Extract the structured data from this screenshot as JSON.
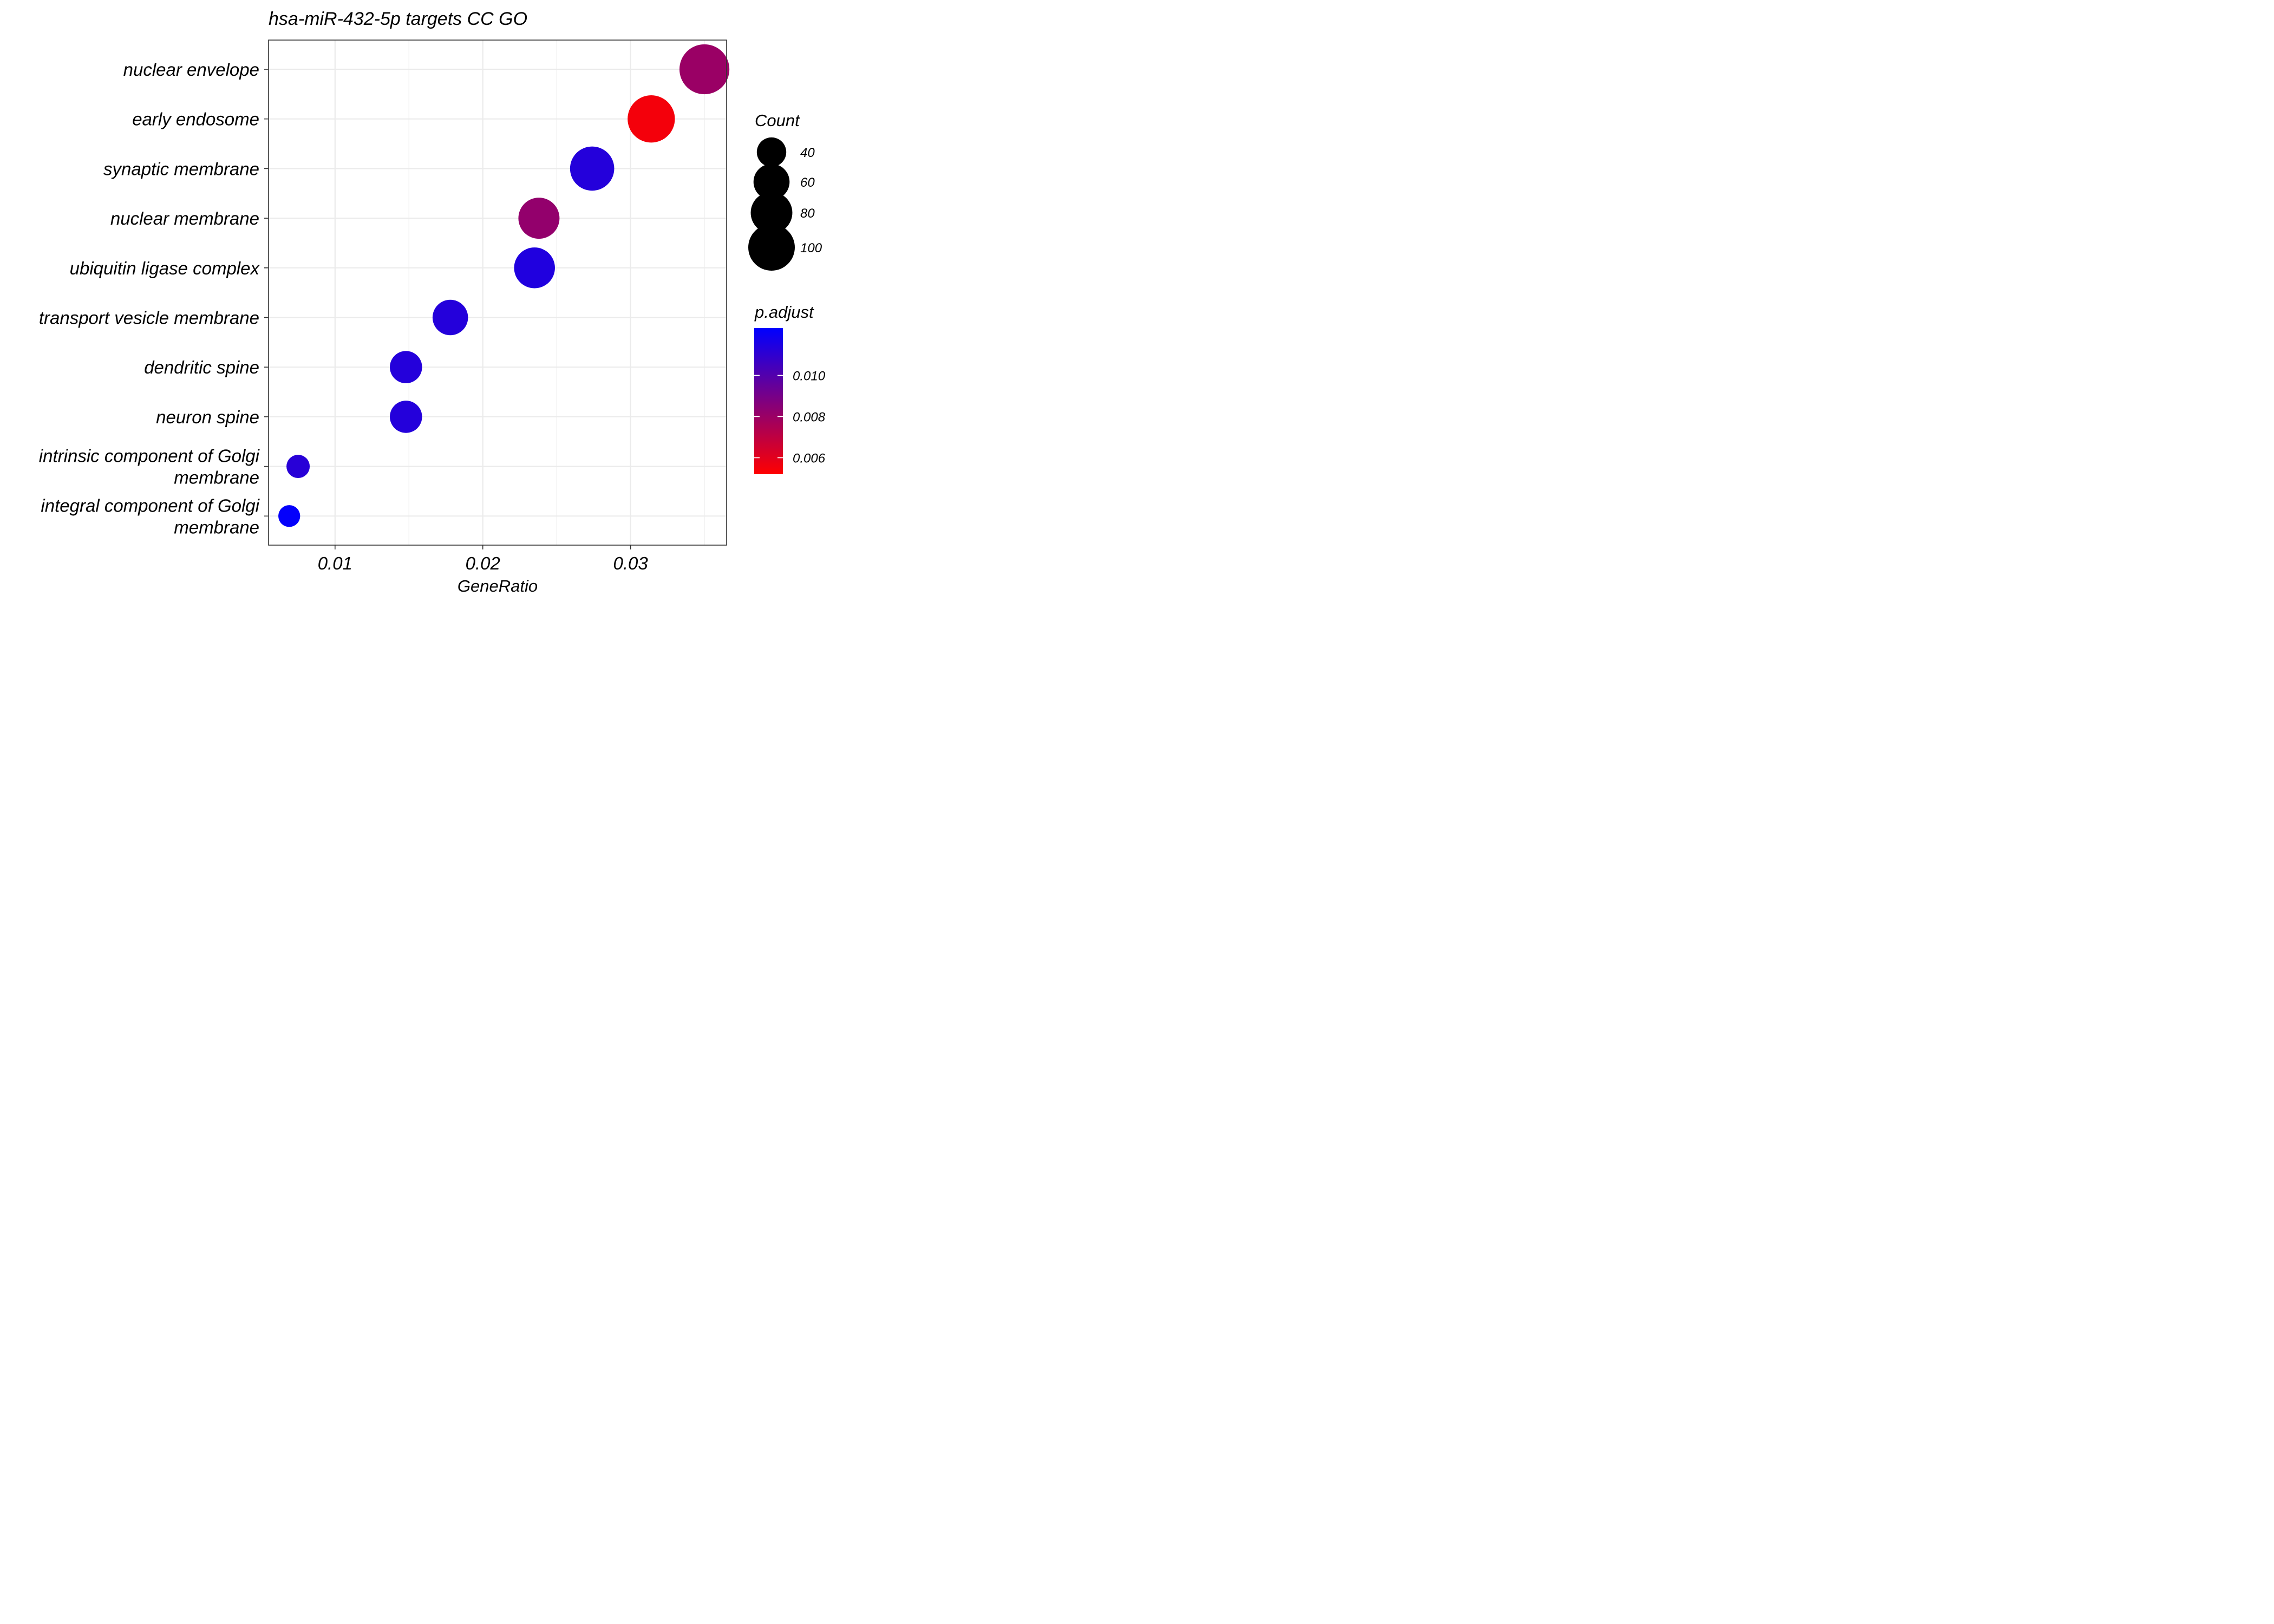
{
  "chart_data": {
    "type": "scatter",
    "title": "hsa-miR-432-5p targets CC GO",
    "xlabel": "GeneRatio",
    "ylabel": "",
    "xlim": [
      0.0055,
      0.0365
    ],
    "x_ticks": [
      0.01,
      0.02,
      0.03
    ],
    "x_tick_labels": [
      "0.01",
      "0.02",
      "0.03"
    ],
    "grid": true,
    "categories": [
      "nuclear envelope",
      "early endosome",
      "synaptic membrane",
      "nuclear membrane",
      "ubiquitin ligase complex",
      "transport vesicle membrane",
      "dendritic spine",
      "neuron spine",
      "intrinsic component of Golgi membrane",
      "integral component of Golgi membrane"
    ],
    "category_label_lines": [
      [
        "nuclear envelope"
      ],
      [
        "early endosome"
      ],
      [
        "synaptic membrane"
      ],
      [
        "nuclear membrane"
      ],
      [
        "ubiquitin ligase complex"
      ],
      [
        "transport vesicle membrane"
      ],
      [
        "dendritic spine"
      ],
      [
        "neuron spine"
      ],
      [
        "intrinsic component of Golgi",
        "membrane"
      ],
      [
        "integral component of Golgi",
        "membrane"
      ]
    ],
    "points": [
      {
        "category": "nuclear envelope",
        "gene_ratio": 0.035,
        "count": 115,
        "p_adjust": 0.008
      },
      {
        "category": "early endosome",
        "gene_ratio": 0.0314,
        "count": 103,
        "p_adjust": 0.0055
      },
      {
        "category": "synaptic membrane",
        "gene_ratio": 0.0274,
        "count": 90,
        "p_adjust": 0.0113
      },
      {
        "category": "nuclear membrane",
        "gene_ratio": 0.0238,
        "count": 78,
        "p_adjust": 0.0082
      },
      {
        "category": "ubiquitin ligase complex",
        "gene_ratio": 0.0235,
        "count": 77,
        "p_adjust": 0.0114
      },
      {
        "category": "transport vesicle membrane",
        "gene_ratio": 0.0178,
        "count": 58,
        "p_adjust": 0.0113
      },
      {
        "category": "dendritic spine",
        "gene_ratio": 0.0148,
        "count": 48,
        "p_adjust": 0.0113
      },
      {
        "category": "neuron spine",
        "gene_ratio": 0.0148,
        "count": 48,
        "p_adjust": 0.0113
      },
      {
        "category": "intrinsic component of Golgi membrane",
        "gene_ratio": 0.0075,
        "count": 25,
        "p_adjust": 0.0112
      },
      {
        "category": "integral component of Golgi membrane",
        "gene_ratio": 0.0069,
        "count": 22,
        "p_adjust": 0.0122
      }
    ],
    "size_legend": {
      "title": "Count",
      "values": [
        40,
        60,
        80,
        100
      ],
      "labels": [
        "40",
        "60",
        "80",
        "100"
      ]
    },
    "color_legend": {
      "title": "p.adjust",
      "min": 0.0052,
      "max": 0.0123,
      "ticks": [
        0.01,
        0.008,
        0.006
      ],
      "tick_labels": [
        "0.010",
        "0.008",
        "0.006"
      ],
      "low_color": "#ff0000",
      "high_color": "#0000ff"
    }
  }
}
